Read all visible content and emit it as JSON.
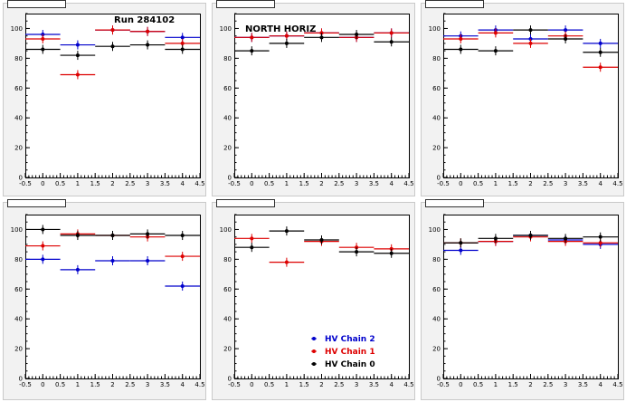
{
  "chart_data": [
    {
      "type": "scatter",
      "title": "",
      "annotation": "Run 284102",
      "xlim": [
        -0.5,
        4.5
      ],
      "ylim": [
        0,
        110
      ],
      "xticks": [
        "-0.5",
        "0",
        "0.5",
        "1",
        "1.5",
        "2",
        "2.5",
        "3",
        "3.5",
        "4",
        "4.5"
      ],
      "yticks": [
        "0",
        "20",
        "40",
        "60",
        "80",
        "100"
      ],
      "series": [
        {
          "color": "#0000cc",
          "x": [
            0,
            1,
            2,
            3,
            4
          ],
          "values": [
            96,
            89,
            99,
            98,
            94
          ],
          "xerr": [
            0.5,
            0.5,
            0.5,
            0.5,
            0.5
          ]
        },
        {
          "color": "#dd0000",
          "x": [
            0,
            1,
            2,
            3,
            4
          ],
          "values": [
            93,
            69,
            99,
            98,
            90
          ],
          "xerr": [
            0.5,
            0.5,
            0.5,
            0.5,
            0.5
          ]
        },
        {
          "color": "#000000",
          "x": [
            0,
            1,
            2,
            3,
            4
          ],
          "values": [
            86,
            82,
            88,
            89,
            86
          ],
          "xerr": [
            0.5,
            0.5,
            0.5,
            0.5,
            0.5
          ]
        }
      ]
    },
    {
      "type": "scatter",
      "title": "",
      "annotation": "NORTH HORIZ",
      "xlim": [
        -0.5,
        4.5
      ],
      "ylim": [
        0,
        110
      ],
      "xticks": [
        "-0.5",
        "0",
        "0.5",
        "1",
        "1.5",
        "2",
        "2.5",
        "3",
        "3.5",
        "4",
        "4.5"
      ],
      "yticks": [
        "0",
        "20",
        "40",
        "60",
        "80",
        "100"
      ],
      "series": [
        {
          "color": "#0000cc",
          "x": [
            0,
            1,
            2,
            3,
            4
          ],
          "values": [
            94,
            95,
            97,
            94,
            97
          ],
          "xerr": [
            0.5,
            0.5,
            0.5,
            0.5,
            0.5
          ]
        },
        {
          "color": "#dd0000",
          "x": [
            0,
            1,
            2,
            3,
            4
          ],
          "values": [
            94,
            95,
            97,
            94,
            97
          ],
          "xerr": [
            0.5,
            0.5,
            0.5,
            0.5,
            0.5
          ]
        },
        {
          "color": "#000000",
          "x": [
            0,
            1,
            2,
            3,
            4
          ],
          "values": [
            85,
            90,
            94,
            96,
            91
          ],
          "xerr": [
            0.5,
            0.5,
            0.5,
            0.5,
            0.5
          ]
        }
      ]
    },
    {
      "type": "scatter",
      "title": "",
      "annotation": "",
      "xlim": [
        -0.5,
        4.5
      ],
      "ylim": [
        0,
        110
      ],
      "xticks": [
        "-0.5",
        "0",
        "0.5",
        "1",
        "1.5",
        "2",
        "2.5",
        "3",
        "3.5",
        "4",
        "4.5"
      ],
      "yticks": [
        "0",
        "20",
        "40",
        "60",
        "80",
        "100"
      ],
      "series": [
        {
          "color": "#0000cc",
          "x": [
            0,
            1,
            2,
            3,
            4
          ],
          "values": [
            95,
            99,
            93,
            99,
            90
          ],
          "xerr": [
            0.5,
            0.5,
            0.5,
            0.5,
            0.5
          ]
        },
        {
          "color": "#dd0000",
          "x": [
            0,
            1,
            2,
            3,
            4
          ],
          "values": [
            93,
            97,
            90,
            95,
            74
          ],
          "xerr": [
            0.5,
            0.5,
            0.5,
            0.5,
            0.5
          ]
        },
        {
          "color": "#000000",
          "x": [
            0,
            1,
            2,
            3,
            4
          ],
          "values": [
            86,
            85,
            99,
            93,
            84
          ],
          "xerr": [
            0.5,
            0.5,
            0.5,
            0.5,
            0.5
          ]
        }
      ]
    },
    {
      "type": "scatter",
      "title": "",
      "annotation": "",
      "xlim": [
        -0.5,
        4.5
      ],
      "ylim": [
        0,
        110
      ],
      "xticks": [
        "-0.5",
        "0",
        "0.5",
        "1",
        "1.5",
        "2",
        "2.5",
        "3",
        "3.5",
        "4",
        "4.5"
      ],
      "yticks": [
        "0",
        "20",
        "40",
        "60",
        "80",
        "100"
      ],
      "series": [
        {
          "color": "#0000cc",
          "x": [
            0,
            1,
            2,
            3,
            4
          ],
          "values": [
            80,
            73,
            79,
            79,
            62
          ],
          "xerr": [
            0.5,
            0.5,
            0.5,
            0.5,
            0.5
          ]
        },
        {
          "color": "#dd0000",
          "x": [
            0,
            1,
            2,
            3,
            4
          ],
          "values": [
            89,
            97,
            96,
            95,
            82
          ],
          "xerr": [
            0.5,
            0.5,
            0.5,
            0.5,
            0.5
          ]
        },
        {
          "color": "#000000",
          "x": [
            0,
            1,
            2,
            3,
            4
          ],
          "values": [
            100,
            96,
            96,
            97,
            96
          ],
          "xerr": [
            0.5,
            0.5,
            0.5,
            0.5,
            0.5
          ]
        }
      ]
    },
    {
      "type": "scatter",
      "title": "",
      "annotation": "",
      "xlim": [
        -0.5,
        4.5
      ],
      "ylim": [
        0,
        110
      ],
      "xticks": [
        "-0.5",
        "0",
        "0.5",
        "1",
        "1.5",
        "2",
        "2.5",
        "3",
        "3.5",
        "4",
        "4.5"
      ],
      "yticks": [
        "0",
        "20",
        "40",
        "60",
        "80",
        "100"
      ],
      "legend": {
        "position": "bottom-right",
        "entries": [
          {
            "label": "HV Chain 2",
            "color": "#0000cc"
          },
          {
            "label": "HV Chain 1",
            "color": "#dd0000"
          },
          {
            "label": "HV Chain 0",
            "color": "#000000"
          }
        ]
      },
      "series": [
        {
          "name": "HV Chain 2",
          "color": "#0000cc",
          "x": [],
          "values": [],
          "xerr": []
        },
        {
          "name": "HV Chain 1",
          "color": "#dd0000",
          "x": [
            0,
            1,
            2,
            3,
            4
          ],
          "values": [
            94,
            78,
            92,
            88,
            87
          ],
          "xerr": [
            0.5,
            0.5,
            0.5,
            0.5,
            0.5
          ]
        },
        {
          "name": "HV Chain 0",
          "color": "#000000",
          "x": [
            0,
            1,
            2,
            3,
            4
          ],
          "values": [
            88,
            99,
            93,
            85,
            84
          ],
          "xerr": [
            0.5,
            0.5,
            0.5,
            0.5,
            0.5
          ]
        }
      ]
    },
    {
      "type": "scatter",
      "title": "",
      "annotation": "",
      "xlim": [
        -0.5,
        4.5
      ],
      "ylim": [
        0,
        110
      ],
      "xticks": [
        "-0.5",
        "0",
        "0.5",
        "1",
        "1.5",
        "2",
        "2.5",
        "3",
        "3.5",
        "4",
        "4.5"
      ],
      "yticks": [
        "0",
        "20",
        "40",
        "60",
        "80",
        "100"
      ],
      "series": [
        {
          "color": "#0000cc",
          "x": [
            0,
            1,
            2,
            3,
            4
          ],
          "values": [
            86,
            92,
            96,
            93,
            90
          ],
          "xerr": [
            0.5,
            0.5,
            0.5,
            0.5,
            0.5
          ]
        },
        {
          "color": "#dd0000",
          "x": [
            0,
            1,
            2,
            3,
            4
          ],
          "values": [
            91,
            92,
            95,
            92,
            91
          ],
          "xerr": [
            0.5,
            0.5,
            0.5,
            0.5,
            0.5
          ]
        },
        {
          "color": "#000000",
          "x": [
            0,
            1,
            2,
            3,
            4
          ],
          "values": [
            91,
            94,
            96,
            94,
            95
          ],
          "xerr": [
            0.5,
            0.5,
            0.5,
            0.5,
            0.5
          ]
        }
      ]
    }
  ]
}
